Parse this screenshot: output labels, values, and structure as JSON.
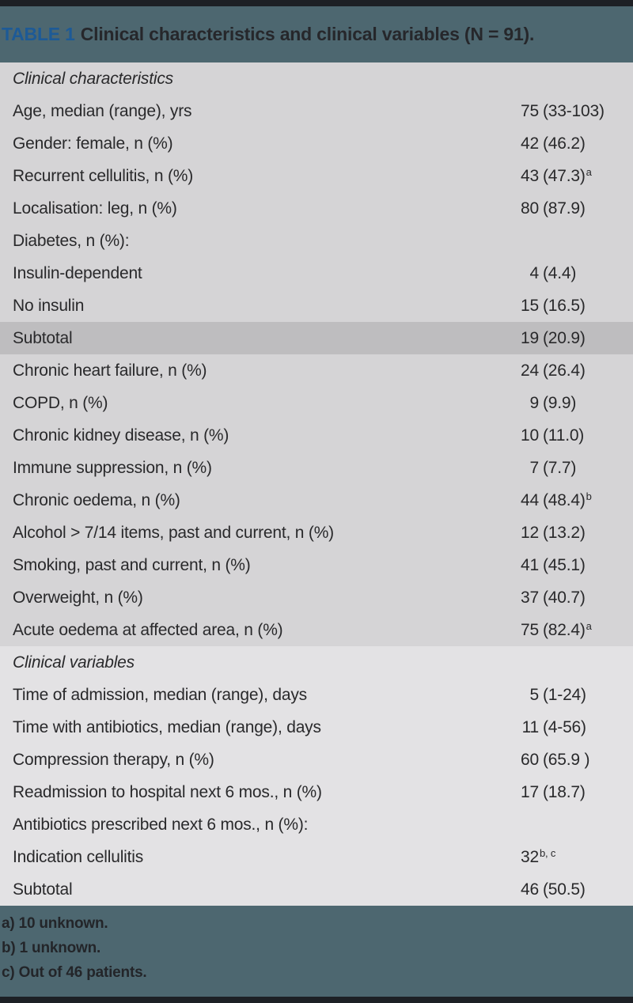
{
  "colors": {
    "bar": "#1d2025",
    "header_bg": "#4d6770",
    "title_blue": "#1d5a96",
    "title_dark": "#26272b",
    "section1_bg": "#d5d4d6",
    "highlight_bg": "#bebdbf",
    "section2_bg": "#e3e2e4",
    "row_text": "#29292b",
    "footnote_text": "#232529"
  },
  "table": {
    "title_label": "TABLE 1",
    "title_text": "Clinical characteristics and clinical variables (N = 91).",
    "sections": [
      {
        "header": "Clinical characteristics",
        "rows": [
          {
            "label": "Age, median (range), yrs",
            "n": "75",
            "paren": "(33-103)",
            "sup": ""
          },
          {
            "label": "Gender: female, n (%)",
            "n": "42",
            "paren": "(46.2)",
            "sup": ""
          },
          {
            "label": "Recurrent cellulitis, n (%)",
            "n": "43",
            "paren": "(47.3)",
            "sup": "a"
          },
          {
            "label": "Localisation: leg, n (%)",
            "n": "80",
            "paren": "(87.9)",
            "sup": ""
          },
          {
            "label": "Diabetes, n (%):",
            "n": "",
            "paren": "",
            "sup": ""
          },
          {
            "label": "Insulin-dependent",
            "n": "4",
            "paren": "(4.4)",
            "sup": ""
          },
          {
            "label": "No insulin",
            "n": "15",
            "paren": "(16.5)",
            "sup": ""
          },
          {
            "label": "Subtotal",
            "n": "19",
            "paren": "(20.9)",
            "sup": "",
            "highlight": true
          },
          {
            "label": "Chronic heart failure, n (%)",
            "n": "24",
            "paren": "(26.4)",
            "sup": ""
          },
          {
            "label": "COPD, n (%)",
            "n": "9",
            "paren": "(9.9)",
            "sup": ""
          },
          {
            "label": "Chronic kidney disease, n (%)",
            "n": "10",
            "paren": "(11.0)",
            "sup": ""
          },
          {
            "label": "Immune suppression, n (%)",
            "n": "7",
            "paren": "(7.7)",
            "sup": ""
          },
          {
            "label": "Chronic oedema, n (%)",
            "n": "44",
            "paren": "(48.4)",
            "sup": "b"
          },
          {
            "label": "Alcohol > 7/14 items, past and current, n (%)",
            "n": "12",
            "paren": "(13.2)",
            "sup": ""
          },
          {
            "label": "Smoking, past and current, n (%)",
            "n": "41",
            "paren": "(45.1)",
            "sup": ""
          },
          {
            "label": "Overweight, n (%)",
            "n": "37",
            "paren": "(40.7)",
            "sup": ""
          },
          {
            "label": "Acute oedema at affected area, n (%)",
            "n": "75",
            "paren": "(82.4)",
            "sup": "a"
          }
        ]
      },
      {
        "header": "Clinical variables",
        "rows": [
          {
            "label": "Time of admission, median (range), days",
            "n": "5",
            "paren": "(1-24)",
            "sup": ""
          },
          {
            "label": "Time with antibiotics, median (range), days",
            "n": "11",
            "paren": "(4-56)",
            "sup": ""
          },
          {
            "label": "Compression therapy, n (%)",
            "n": "60",
            "paren": "(65.9 )",
            "sup": ""
          },
          {
            "label": "Readmission to hospital next 6 mos., n (%)",
            "n": "17",
            "paren": "(18.7)",
            "sup": ""
          },
          {
            "label": "Antibiotics prescribed next 6 mos., n (%):",
            "n": "",
            "paren": "",
            "sup": ""
          },
          {
            "label": "Indication cellulitis",
            "n": "32",
            "paren": "",
            "sup": "b, c"
          },
          {
            "label": "Subtotal",
            "n": "46",
            "paren": "(50.5)",
            "sup": ""
          }
        ]
      }
    ],
    "footnotes": [
      "a) 10 unknown.",
      "b) 1 unknown.",
      "c) Out of 46 patients."
    ]
  }
}
